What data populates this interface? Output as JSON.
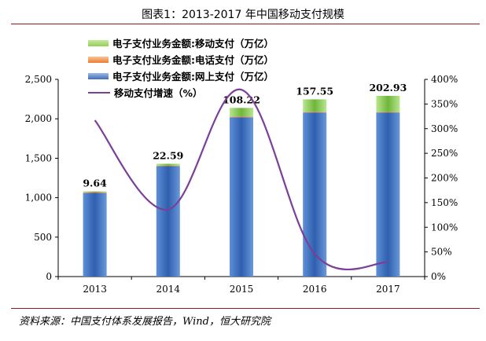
{
  "page": {
    "title": "图表1：2013-2017 年中国移动支付规模",
    "source": "资料来源：中国支付体系发展报告，Wind，恒大研究院"
  },
  "chart_data": {
    "type": "bar",
    "stacked": true,
    "categories": [
      "2013",
      "2014",
      "2015",
      "2016",
      "2017"
    ],
    "series": [
      {
        "name": "电子支付业务金额:网上支付（万亿）",
        "values": [
          1060,
          1400,
          2020,
          2080,
          2080
        ],
        "color": "#3f6fba",
        "axis": "left"
      },
      {
        "name": "电子支付业务金额:电话支付（万亿）",
        "values": [
          10,
          7,
          10,
          9,
          8
        ],
        "color": "#ed7d31",
        "axis": "left"
      },
      {
        "name": "电子支付业务金额:移动支付（万亿）",
        "values": [
          9.64,
          22.59,
          108.22,
          157.55,
          202.93
        ],
        "color": "#92d050",
        "axis": "left"
      },
      {
        "name": "移动支付增速（%）",
        "type": "line",
        "values": [
          317,
          136,
          379,
          46,
          29
        ],
        "color": "#7b3f98",
        "axis": "right"
      }
    ],
    "data_labels": [
      "9.64",
      "22.59",
      "108.22",
      "157.55",
      "202.93"
    ],
    "y_left": {
      "min": 0,
      "max": 2500,
      "ticks": [
        "0",
        "500",
        "1,000",
        "1,500",
        "2,000",
        "2,500"
      ]
    },
    "y_right": {
      "min": 0,
      "max": 400,
      "ticks": [
        "0%",
        "50%",
        "100%",
        "150%",
        "200%",
        "250%",
        "300%",
        "350%",
        "400%"
      ]
    },
    "legend_position": "top-left",
    "grid": false
  }
}
